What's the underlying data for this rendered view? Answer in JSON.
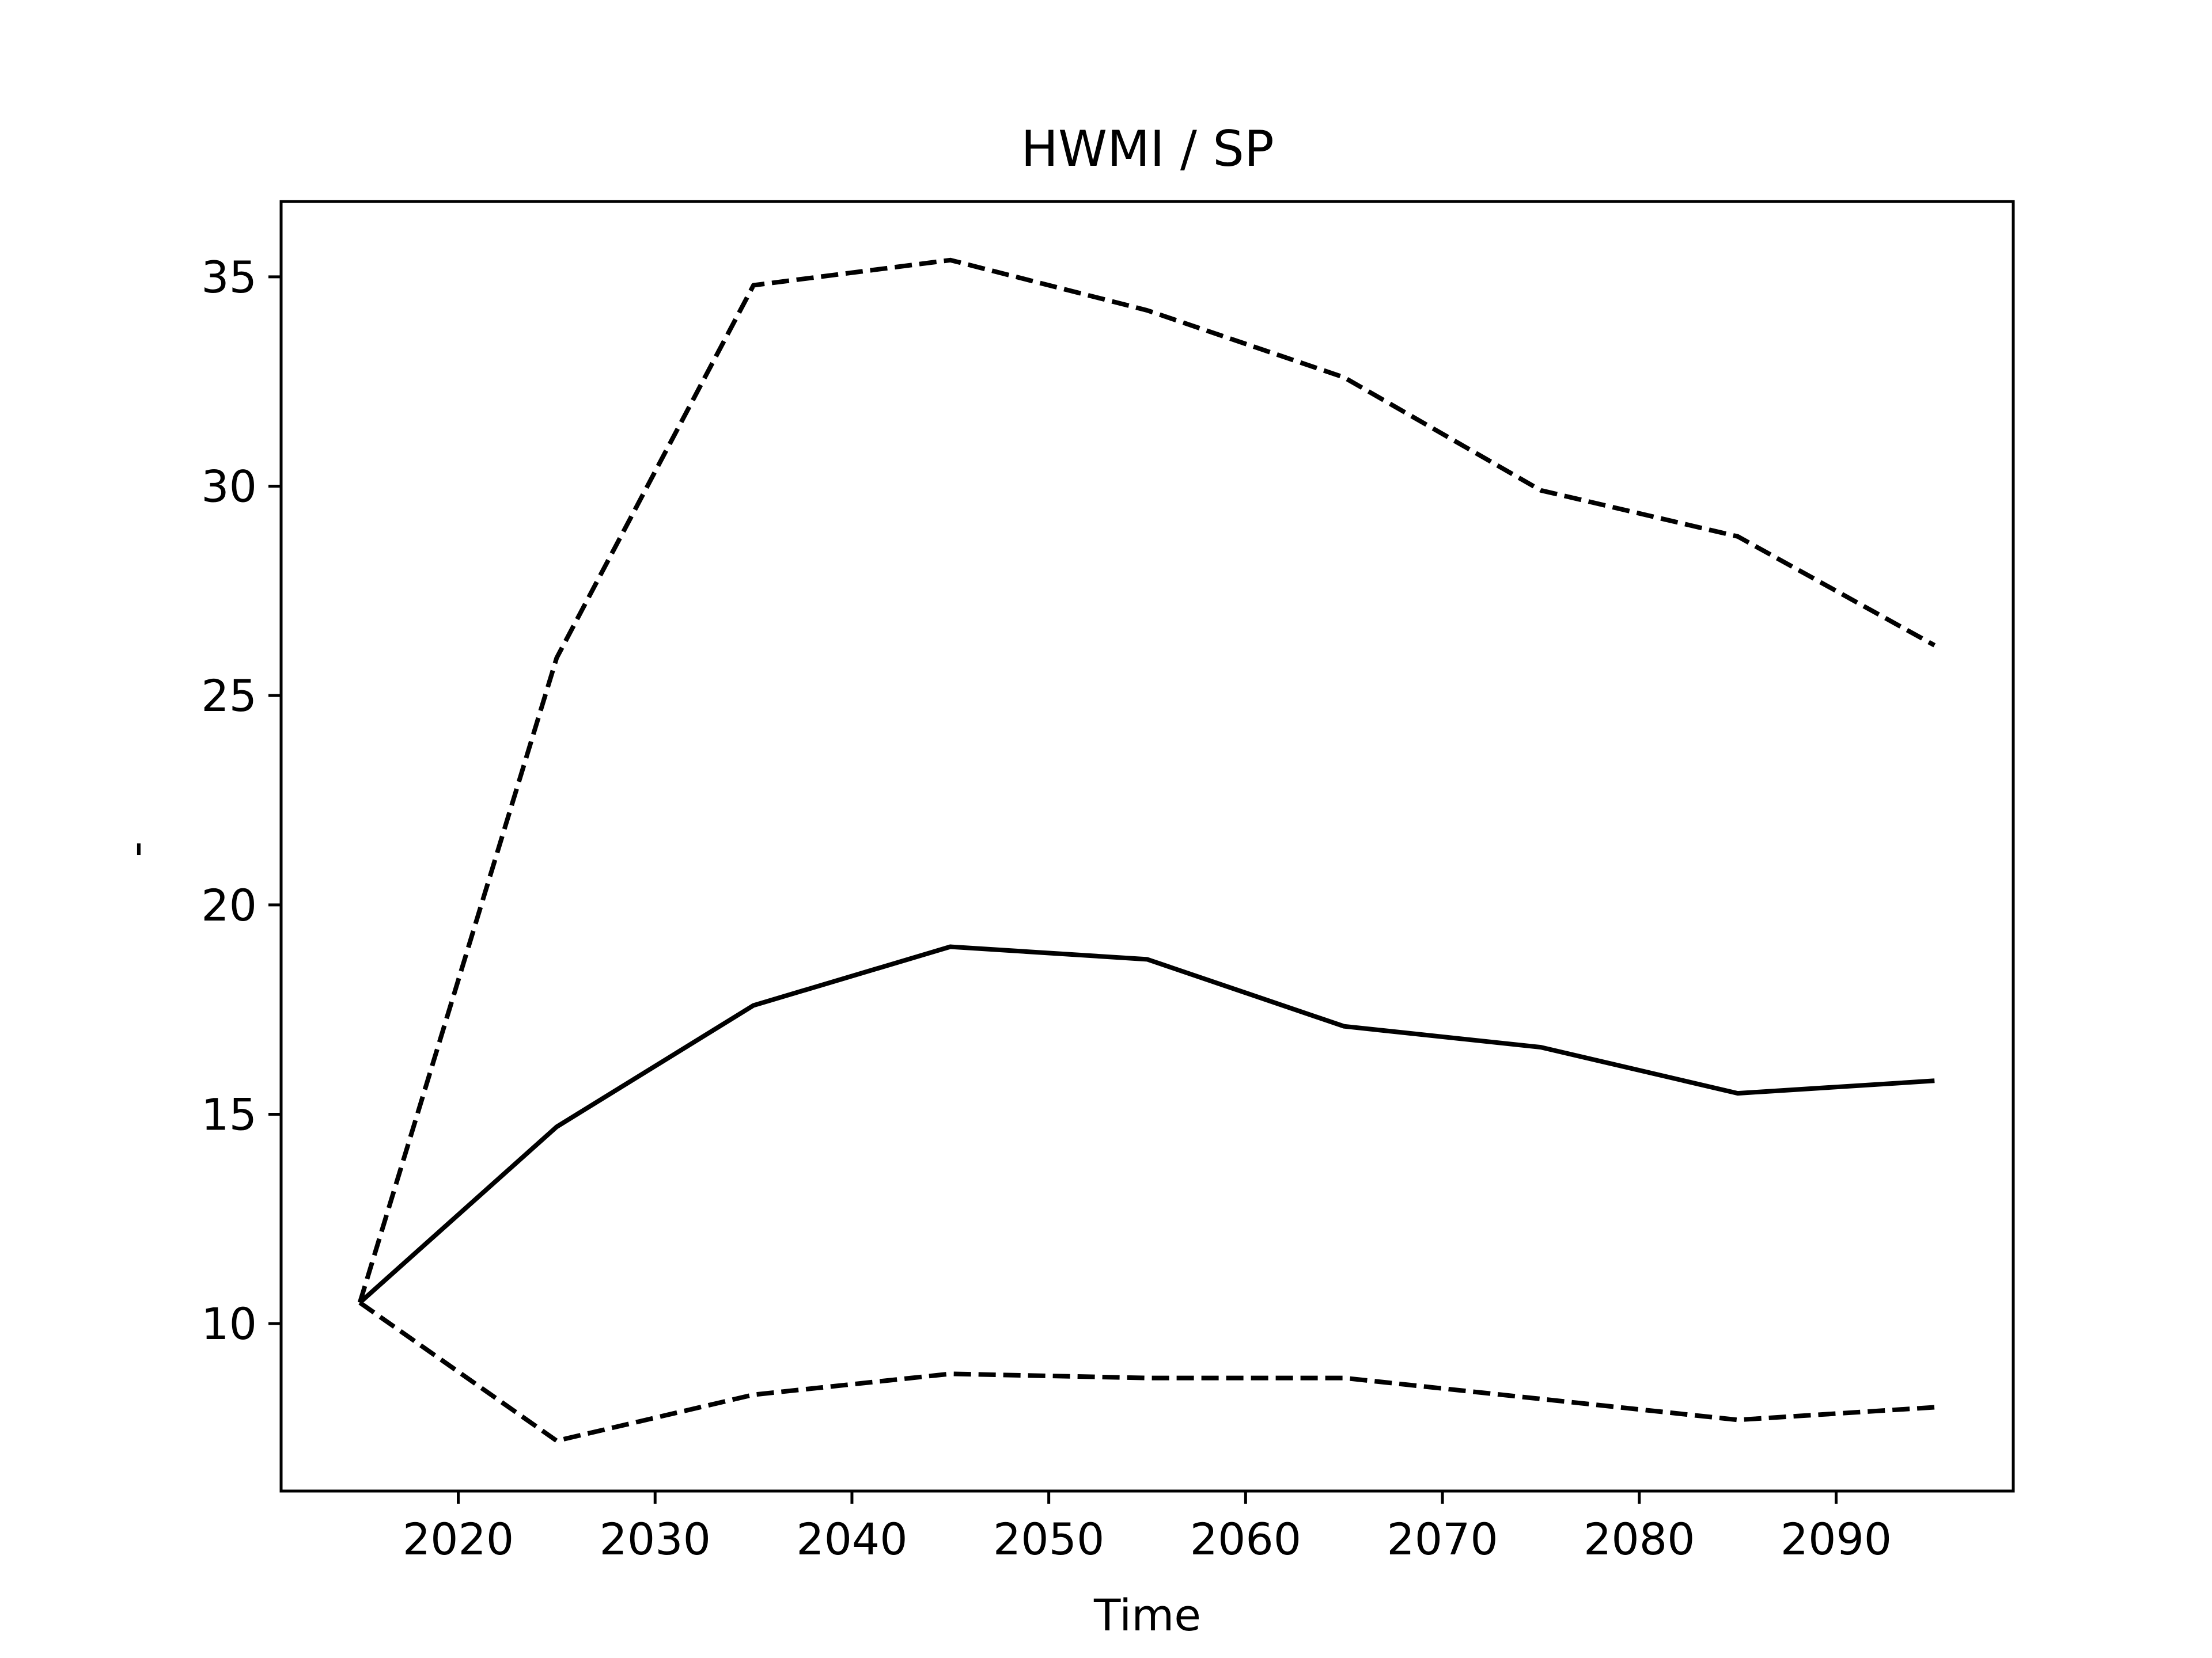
{
  "chart_data": {
    "type": "line",
    "title": "HWMI / SP",
    "xlabel": "Time",
    "ylabel": "-",
    "xlim": [
      2011.0,
      2099.0
    ],
    "ylim": [
      6.0,
      36.8
    ],
    "xticks": [
      2020,
      2030,
      2040,
      2050,
      2060,
      2070,
      2080,
      2090
    ],
    "yticks": [
      10,
      15,
      20,
      25,
      30,
      35
    ],
    "grid": false,
    "legend": "none",
    "x": [
      2015,
      2025,
      2035,
      2045,
      2055,
      2065,
      2075,
      2085,
      2095
    ],
    "series": [
      {
        "style": "solid",
        "color": "#000000",
        "values": [
          10.5,
          14.7,
          17.6,
          19.0,
          18.7,
          17.1,
          16.6,
          15.5,
          15.8
        ]
      },
      {
        "style": "dashed",
        "color": "#000000",
        "values": [
          10.5,
          25.9,
          34.8,
          35.4,
          34.2,
          32.6,
          29.9,
          28.8,
          26.2
        ]
      },
      {
        "style": "dashed",
        "color": "#000000",
        "values": [
          10.5,
          7.2,
          8.3,
          8.8,
          8.7,
          8.7,
          8.2,
          7.7,
          8.0
        ]
      }
    ]
  }
}
